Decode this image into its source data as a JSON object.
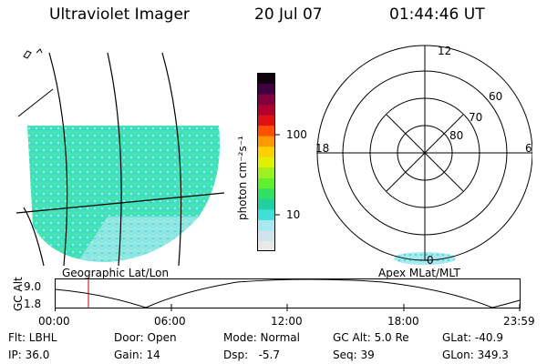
{
  "header": {
    "title": "Ultraviolet Imager",
    "date": "20 Jul 07",
    "time": "01:44:46 UT"
  },
  "colorbar": {
    "unit_label": "photon cm⁻²s⁻¹",
    "ticks": [
      {
        "label": "100",
        "value": 100
      },
      {
        "label": "10",
        "value": 10
      }
    ],
    "colors": [
      "#e8e8e8",
      "#d0e4ec",
      "#a8e8f0",
      "#40e0d8",
      "#20d0a0",
      "#30e060",
      "#60f030",
      "#a0f020",
      "#e0f000",
      "#ffd000",
      "#ff9800",
      "#ff5000",
      "#e01010",
      "#b00030",
      "#800040",
      "#400040",
      "#100010"
    ]
  },
  "left_map": {
    "label": "Geographic Lat/Lon",
    "fill_color": "#40e0c0"
  },
  "polar_plot": {
    "label": "Apex MLat/MLT",
    "mlt_labels": {
      "top": "12",
      "left": "18",
      "right": "6",
      "bottom": "0"
    },
    "lat_labels": [
      "60",
      "70",
      "80"
    ]
  },
  "altitude_plot": {
    "axis_label": "GC Alt",
    "y_ticks": [
      "9.0",
      "1.8"
    ],
    "x_ticks": [
      "00:00",
      "06:00",
      "12:00",
      "18:00",
      "23:59"
    ],
    "current_time_color": "#cc0000"
  },
  "info": {
    "flt": "Flt: LBHL",
    "ip": "IP: 36.0",
    "door": "Door: Open",
    "gain": "Gain: 14",
    "mode": "Mode: Normal",
    "dsp": "Dsp:   -5.7",
    "gcalt": "GC Alt: 5.0 Re",
    "seq": "Seq: 39",
    "glat": "GLat: -40.9",
    "glon": "GLon: 349.3"
  }
}
